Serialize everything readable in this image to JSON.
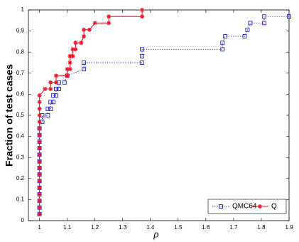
{
  "chart_data": {
    "type": "line",
    "xlabel": "ρ",
    "ylabel": "Fraction of test cases",
    "xlim": [
      0.96,
      1.9
    ],
    "ylim": [
      0,
      1
    ],
    "xticks": [
      1,
      1.1,
      1.2,
      1.3,
      1.4,
      1.5,
      1.6,
      1.7,
      1.8,
      1.9
    ],
    "yticks": [
      0,
      0.1,
      0.2,
      0.3,
      0.4,
      0.5,
      0.6,
      0.7,
      0.8,
      0.9,
      1
    ],
    "legend": "lower right",
    "series": [
      {
        "name": "QMC64",
        "color": "#2222dd",
        "line": "dotted",
        "marker": "square",
        "x": [
          1,
          1,
          1,
          1,
          1,
          1,
          1,
          1,
          1,
          1,
          1,
          1,
          1,
          1,
          1.01,
          1.01,
          1.03,
          1.03,
          1.04,
          1.04,
          1.05,
          1.05,
          1.06,
          1.06,
          1.07,
          1.07,
          1.09,
          1.1,
          1.16,
          1.16,
          1.37,
          1.37,
          1.37,
          1.66,
          1.66,
          1.67,
          1.74,
          1.75,
          1.76,
          1.81,
          1.81,
          1.9
        ],
        "values": [
          0.031,
          0.062,
          0.094,
          0.125,
          0.156,
          0.188,
          0.219,
          0.25,
          0.281,
          0.313,
          0.344,
          0.375,
          0.406,
          0.438,
          0.469,
          0.5,
          0.5,
          0.531,
          0.531,
          0.563,
          0.563,
          0.594,
          0.594,
          0.625,
          0.625,
          0.656,
          0.656,
          0.688,
          0.719,
          0.75,
          0.75,
          0.781,
          0.813,
          0.813,
          0.844,
          0.875,
          0.875,
          0.906,
          0.938,
          0.938,
          0.969,
          0.969
        ]
      },
      {
        "name": "Q",
        "color": "#e8192c",
        "line": "solid",
        "marker": "star",
        "x": [
          1,
          1,
          1,
          1,
          1,
          1,
          1,
          1,
          1,
          1,
          1,
          1,
          1,
          1,
          1,
          1,
          1,
          1,
          1,
          1.02,
          1.04,
          1.04,
          1.06,
          1.06,
          1.1,
          1.1,
          1.11,
          1.11,
          1.11,
          1.12,
          1.12,
          1.13,
          1.13,
          1.15,
          1.16,
          1.16,
          1.18,
          1.2,
          1.25,
          1.25,
          1.37,
          1.37
        ],
        "values": [
          0.031,
          0.062,
          0.094,
          0.125,
          0.156,
          0.188,
          0.219,
          0.25,
          0.281,
          0.313,
          0.344,
          0.375,
          0.406,
          0.438,
          0.469,
          0.5,
          0.531,
          0.563,
          0.594,
          0.625,
          0.625,
          0.656,
          0.656,
          0.688,
          0.688,
          0.719,
          0.719,
          0.75,
          0.781,
          0.781,
          0.813,
          0.813,
          0.844,
          0.844,
          0.875,
          0.906,
          0.906,
          0.938,
          0.938,
          0.969,
          0.969,
          1
        ]
      }
    ]
  }
}
